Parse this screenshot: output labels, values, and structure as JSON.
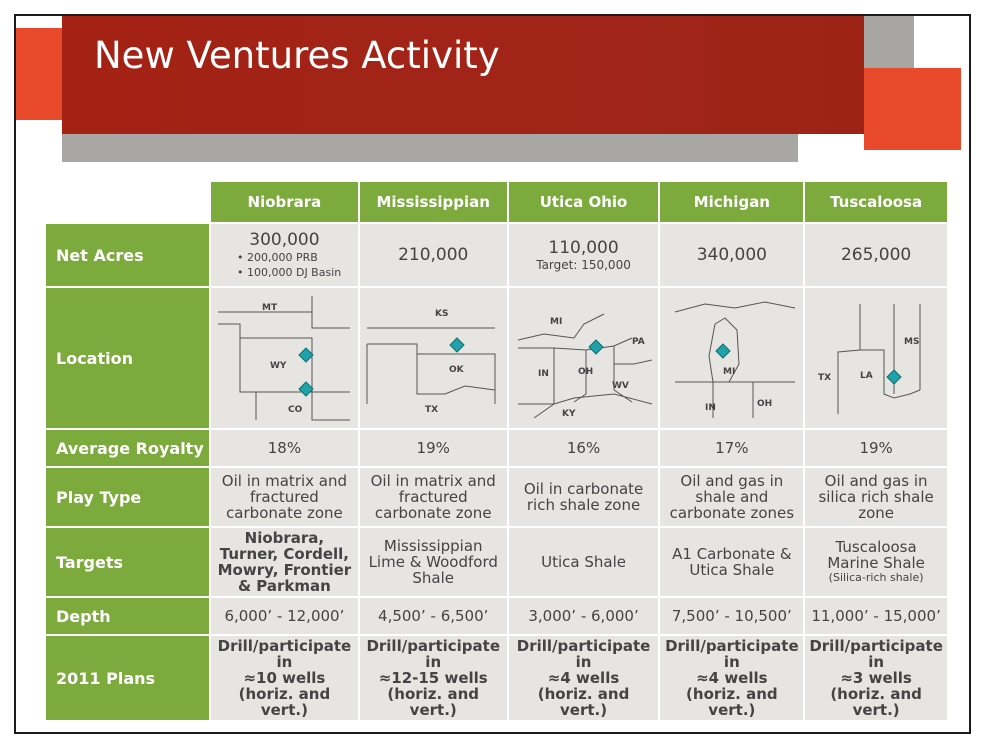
{
  "slide": {
    "title": "New Ventures Activity"
  },
  "table": {
    "columns": [
      "Niobrara",
      "Mississippian",
      "Utica Ohio",
      "Michigan",
      "Tuscaloosa"
    ],
    "row_labels": {
      "net_acres": "Net Acres",
      "location": "Location",
      "royalty": "Average Royalty",
      "play_type": "Play Type",
      "targets": "Targets",
      "depth": "Depth",
      "plans": "2011 Plans"
    },
    "net_acres": {
      "niobrara": "300,000",
      "niobrara_bullets": [
        "• 200,000 PRB",
        "• 100,000 DJ Basin"
      ],
      "mississippian": "210,000",
      "utica": "110,000",
      "utica_target": "Target: 150,000",
      "michigan": "340,000",
      "tuscaloosa": "265,000"
    },
    "location": {
      "niobrara": [
        "MT",
        "WY",
        "CO"
      ],
      "mississippian": [
        "KS",
        "OK",
        "TX"
      ],
      "utica": [
        "MI",
        "PA",
        "IN",
        "OH",
        "WV",
        "KY"
      ],
      "michigan": [
        "MI",
        "IN",
        "OH"
      ],
      "tuscaloosa": [
        "MS",
        "TX",
        "LA"
      ],
      "marker_color": "#1fa3a8"
    },
    "royalty": [
      "18%",
      "19%",
      "16%",
      "17%",
      "19%"
    ],
    "play_type": [
      "Oil in matrix and fractured carbonate zone",
      "Oil in matrix and fractured carbonate zone",
      "Oil in carbonate rich shale zone",
      "Oil and gas in shale and carbonate zones",
      "Oil and gas in silica rich shale zone"
    ],
    "targets": {
      "niobrara": "Niobrara, Turner, Cordell, Mowry, Frontier & Parkman",
      "mississippian": "Mississippian Lime & Woodford Shale",
      "utica": "Utica Shale",
      "michigan": "A1 Carbonate & Utica Shale",
      "tuscaloosa": "Tuscaloosa Marine Shale",
      "tuscaloosa_note": "(Silica-rich shale)"
    },
    "depth": [
      "6,000’ - 12,000’",
      "4,500’ - 6,500’",
      "3,000’ - 6,000’",
      "7,500’ - 10,500’",
      "11,000’ - 15,000’"
    ],
    "plans": [
      [
        "Drill/participate in",
        "≈10 wells",
        "(horiz. and vert.)"
      ],
      [
        "Drill/participate in",
        "≈12-15 wells",
        "(horiz. and vert.)"
      ],
      [
        "Drill/participate in",
        "≈4 wells",
        "(horiz. and vert.)"
      ],
      [
        "Drill/participate in",
        "≈4 wells",
        "(horiz. and vert.)"
      ],
      [
        "Drill/participate in",
        "≈3 wells",
        "(horiz. and vert.)"
      ]
    ]
  },
  "colors": {
    "header_green": "#7caa3d",
    "title_red": "#a32214",
    "accent_orange": "#e8492a",
    "cell_grey": "#e6e5e1"
  }
}
